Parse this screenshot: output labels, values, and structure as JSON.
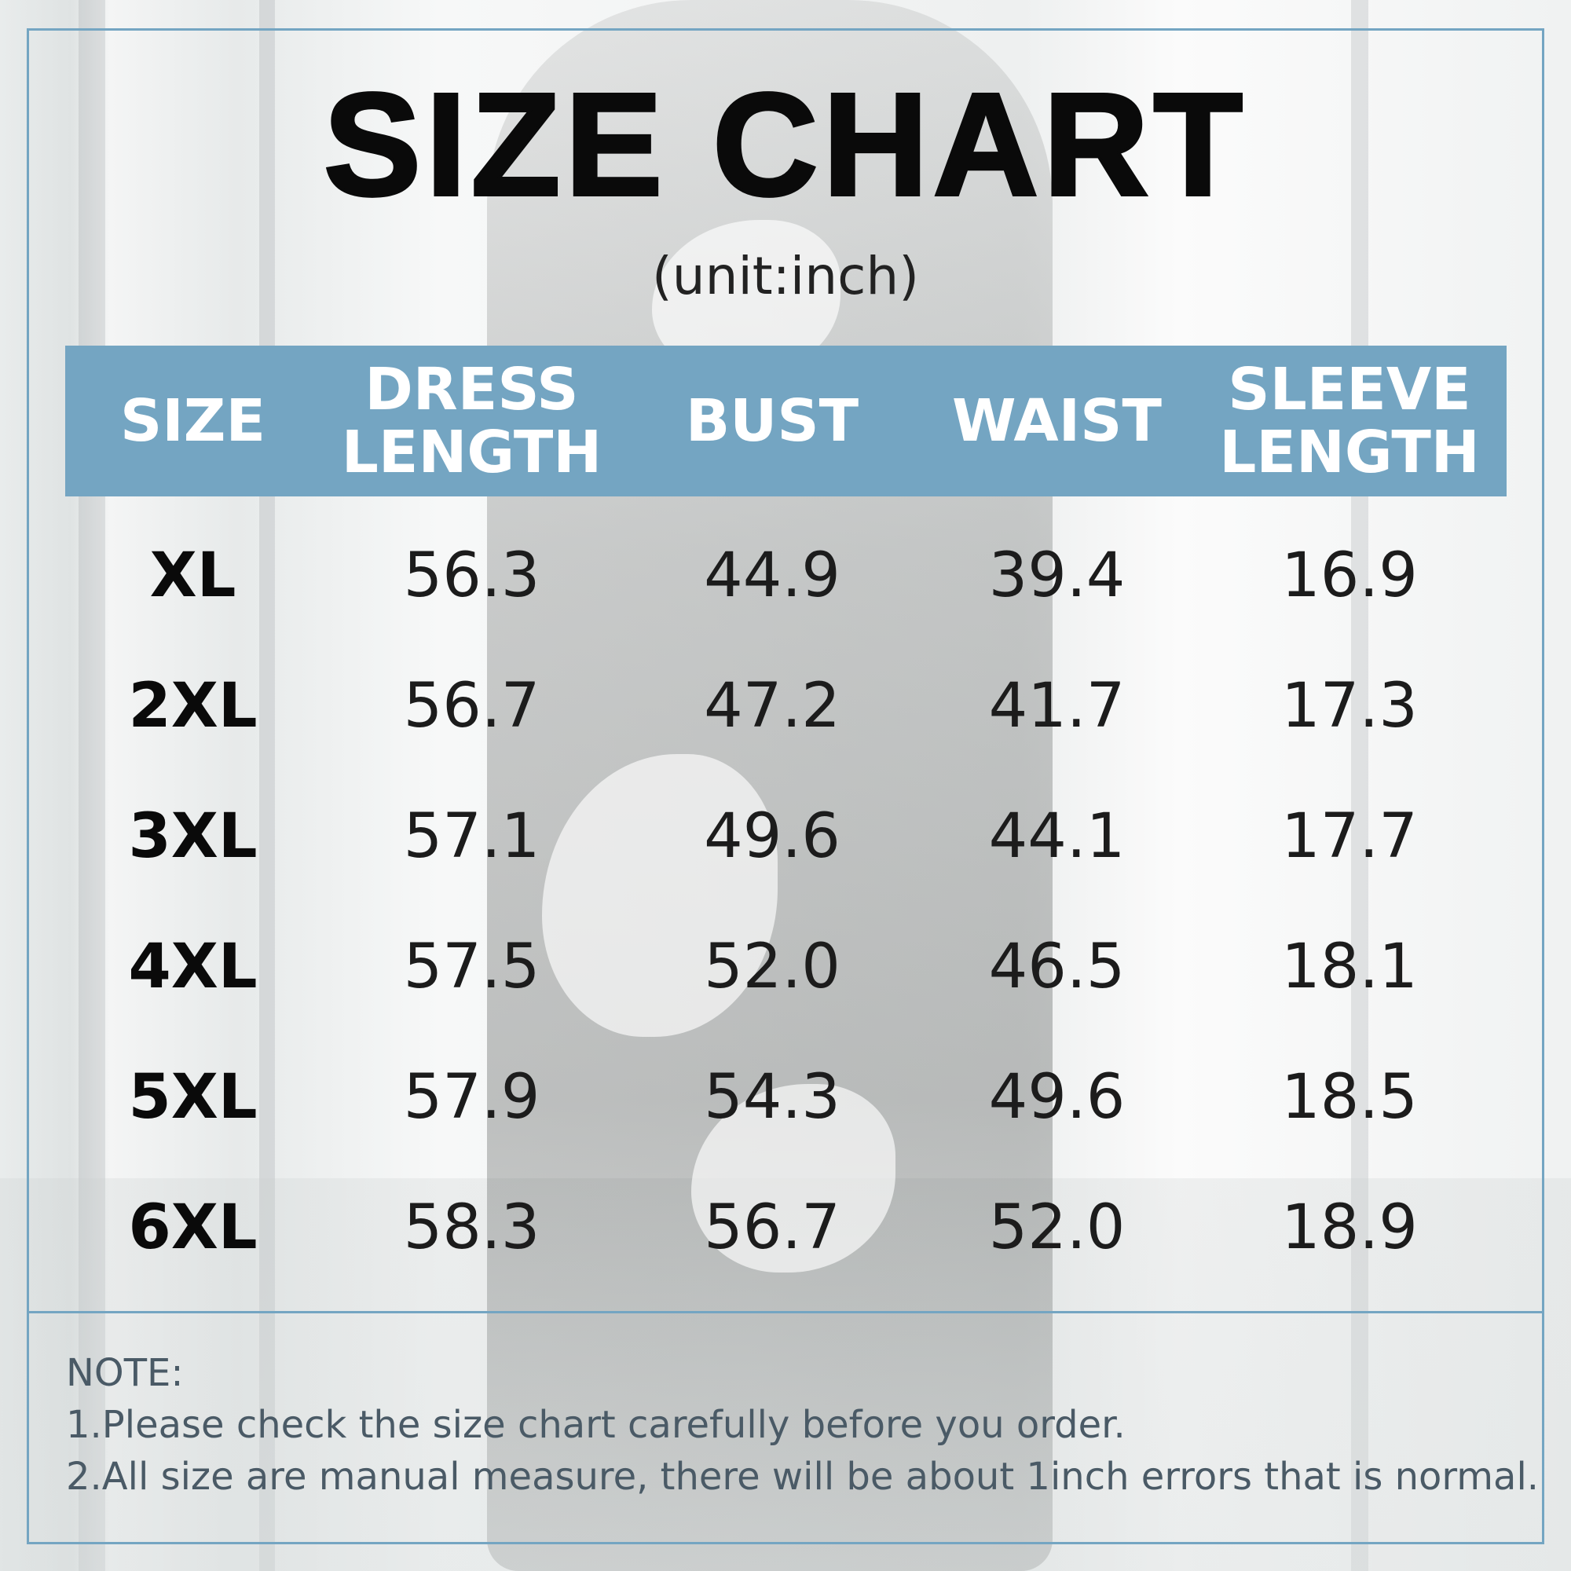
{
  "title": "SIZE CHART",
  "unit": "(unit:inch)",
  "table": {
    "headers": [
      {
        "line1": "SIZE",
        "line2": ""
      },
      {
        "line1": "DRESS",
        "line2": "LENGTH"
      },
      {
        "line1": "BUST",
        "line2": ""
      },
      {
        "line1": "WAIST",
        "line2": ""
      },
      {
        "line1": "SLEEVE",
        "line2": "LENGTH"
      }
    ],
    "rows": [
      [
        "XL",
        "56.3",
        "44.9",
        "39.4",
        "16.9"
      ],
      [
        "2XL",
        "56.7",
        "47.2",
        "41.7",
        "17.3"
      ],
      [
        "3XL",
        "57.1",
        "49.6",
        "44.1",
        "17.7"
      ],
      [
        "4XL",
        "57.5",
        "52.0",
        "46.5",
        "18.1"
      ],
      [
        "5XL",
        "57.9",
        "54.3",
        "49.6",
        "18.5"
      ],
      [
        "6XL",
        "58.3",
        "56.7",
        "52.0",
        "18.9"
      ]
    ]
  },
  "note": {
    "label": "NOTE:",
    "lines": [
      "1.Please check the size chart carefully before you order.",
      "2.All size are manual measure, there will be about 1inch errors that is normal."
    ]
  },
  "colors": {
    "accent": "#74a5c2",
    "text": "#1c1c1c",
    "note_text": "#4a5a66"
  }
}
